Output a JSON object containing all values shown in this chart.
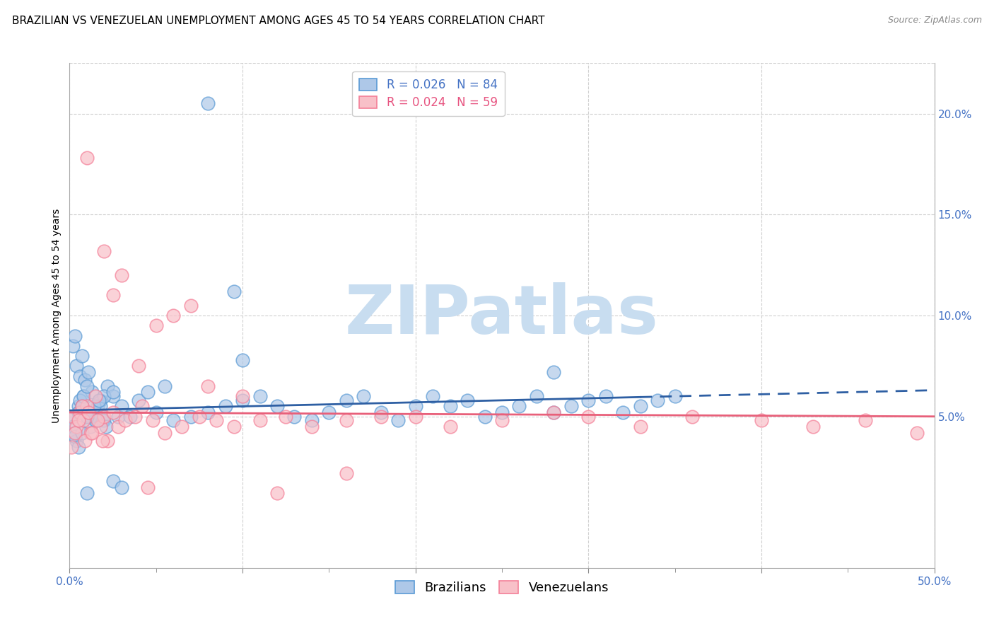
{
  "title": "BRAZILIAN VS VENEZUELAN UNEMPLOYMENT AMONG AGES 45 TO 54 YEARS CORRELATION CHART",
  "source": "Source: ZipAtlas.com",
  "ylabel": "Unemployment Among Ages 45 to 54 years",
  "xlim": [
    0.0,
    0.5
  ],
  "ylim": [
    -0.025,
    0.225
  ],
  "yticks_right": [
    0.05,
    0.1,
    0.15,
    0.2
  ],
  "ytick_labels_right": [
    "5.0%",
    "10.0%",
    "15.0%",
    "20.0%"
  ],
  "brazil_color": "#aec8e8",
  "brazil_edge": "#5b9bd5",
  "venezuela_color": "#f8c0c8",
  "venezuela_edge": "#f48098",
  "brazil_R": 0.026,
  "brazil_N": 84,
  "venezuela_R": 0.024,
  "venezuela_N": 59,
  "watermark": "ZIPatlas",
  "brazil_trend_y_start": 0.053,
  "brazil_trend_y_end": 0.063,
  "brazil_trend_solid_end": 0.33,
  "venezuela_trend_y_start": 0.052,
  "venezuela_trend_y_end": 0.05,
  "title_fontsize": 11,
  "axis_label_fontsize": 10,
  "tick_fontsize": 11,
  "legend_fontsize": 12,
  "source_fontsize": 9,
  "marker_size": 180,
  "brazil_line_color": "#2e5fa3",
  "venezuela_line_color": "#e8607a",
  "grid_color": "#d0d0d0",
  "background_color": "#ffffff",
  "watermark_color": "#c8ddf0",
  "watermark_fontsize": 70,
  "brazil_x": [
    0.005,
    0.008,
    0.01,
    0.012,
    0.015,
    0.018,
    0.02,
    0.022,
    0.025,
    0.028,
    0.002,
    0.003,
    0.004,
    0.006,
    0.007,
    0.009,
    0.011,
    0.013,
    0.016,
    0.019,
    0.001,
    0.002,
    0.003,
    0.004,
    0.005,
    0.006,
    0.007,
    0.008,
    0.01,
    0.012,
    0.015,
    0.018,
    0.02,
    0.003,
    0.005,
    0.007,
    0.01,
    0.014,
    0.017,
    0.021,
    0.025,
    0.03,
    0.035,
    0.04,
    0.045,
    0.05,
    0.06,
    0.07,
    0.08,
    0.09,
    0.1,
    0.11,
    0.12,
    0.13,
    0.14,
    0.15,
    0.16,
    0.17,
    0.18,
    0.19,
    0.2,
    0.21,
    0.22,
    0.23,
    0.24,
    0.25,
    0.26,
    0.27,
    0.28,
    0.29,
    0.3,
    0.31,
    0.32,
    0.33,
    0.34,
    0.35,
    0.08,
    0.095,
    0.1,
    0.28,
    0.01,
    0.025,
    0.03,
    0.055
  ],
  "brazil_y": [
    0.055,
    0.06,
    0.05,
    0.045,
    0.052,
    0.058,
    0.048,
    0.065,
    0.06,
    0.05,
    0.085,
    0.09,
    0.075,
    0.07,
    0.08,
    0.068,
    0.072,
    0.062,
    0.055,
    0.048,
    0.05,
    0.045,
    0.042,
    0.038,
    0.052,
    0.058,
    0.055,
    0.06,
    0.065,
    0.05,
    0.048,
    0.055,
    0.06,
    0.04,
    0.035,
    0.042,
    0.05,
    0.055,
    0.058,
    0.045,
    0.062,
    0.055,
    0.05,
    0.058,
    0.062,
    0.052,
    0.048,
    0.05,
    0.052,
    0.055,
    0.058,
    0.06,
    0.055,
    0.05,
    0.048,
    0.052,
    0.058,
    0.06,
    0.052,
    0.048,
    0.055,
    0.06,
    0.055,
    0.058,
    0.05,
    0.052,
    0.055,
    0.06,
    0.052,
    0.055,
    0.058,
    0.06,
    0.052,
    0.055,
    0.058,
    0.06,
    0.205,
    0.112,
    0.078,
    0.072,
    0.012,
    0.018,
    0.015,
    0.065
  ],
  "venezuela_x": [
    0.002,
    0.004,
    0.006,
    0.008,
    0.01,
    0.012,
    0.015,
    0.018,
    0.02,
    0.022,
    0.001,
    0.003,
    0.005,
    0.007,
    0.009,
    0.011,
    0.013,
    0.016,
    0.019,
    0.025,
    0.028,
    0.032,
    0.038,
    0.042,
    0.048,
    0.055,
    0.065,
    0.075,
    0.085,
    0.095,
    0.11,
    0.125,
    0.14,
    0.16,
    0.18,
    0.2,
    0.22,
    0.25,
    0.28,
    0.3,
    0.33,
    0.36,
    0.4,
    0.43,
    0.46,
    0.49,
    0.01,
    0.025,
    0.04,
    0.06,
    0.08,
    0.1,
    0.03,
    0.05,
    0.07,
    0.02,
    0.045,
    0.12,
    0.16
  ],
  "venezuela_y": [
    0.05,
    0.045,
    0.052,
    0.048,
    0.055,
    0.042,
    0.06,
    0.045,
    0.05,
    0.038,
    0.035,
    0.042,
    0.048,
    0.055,
    0.038,
    0.052,
    0.042,
    0.048,
    0.038,
    0.052,
    0.045,
    0.048,
    0.05,
    0.055,
    0.048,
    0.042,
    0.045,
    0.05,
    0.048,
    0.045,
    0.048,
    0.05,
    0.045,
    0.048,
    0.05,
    0.05,
    0.045,
    0.048,
    0.052,
    0.05,
    0.045,
    0.05,
    0.048,
    0.045,
    0.048,
    0.042,
    0.178,
    0.11,
    0.075,
    0.1,
    0.065,
    0.06,
    0.12,
    0.095,
    0.105,
    0.132,
    0.015,
    0.012,
    0.022
  ],
  "xtick_positions": [
    0.0,
    0.1,
    0.2,
    0.3,
    0.4,
    0.5
  ],
  "xtick_minor_positions": [
    0.05,
    0.15,
    0.25,
    0.35,
    0.45
  ]
}
